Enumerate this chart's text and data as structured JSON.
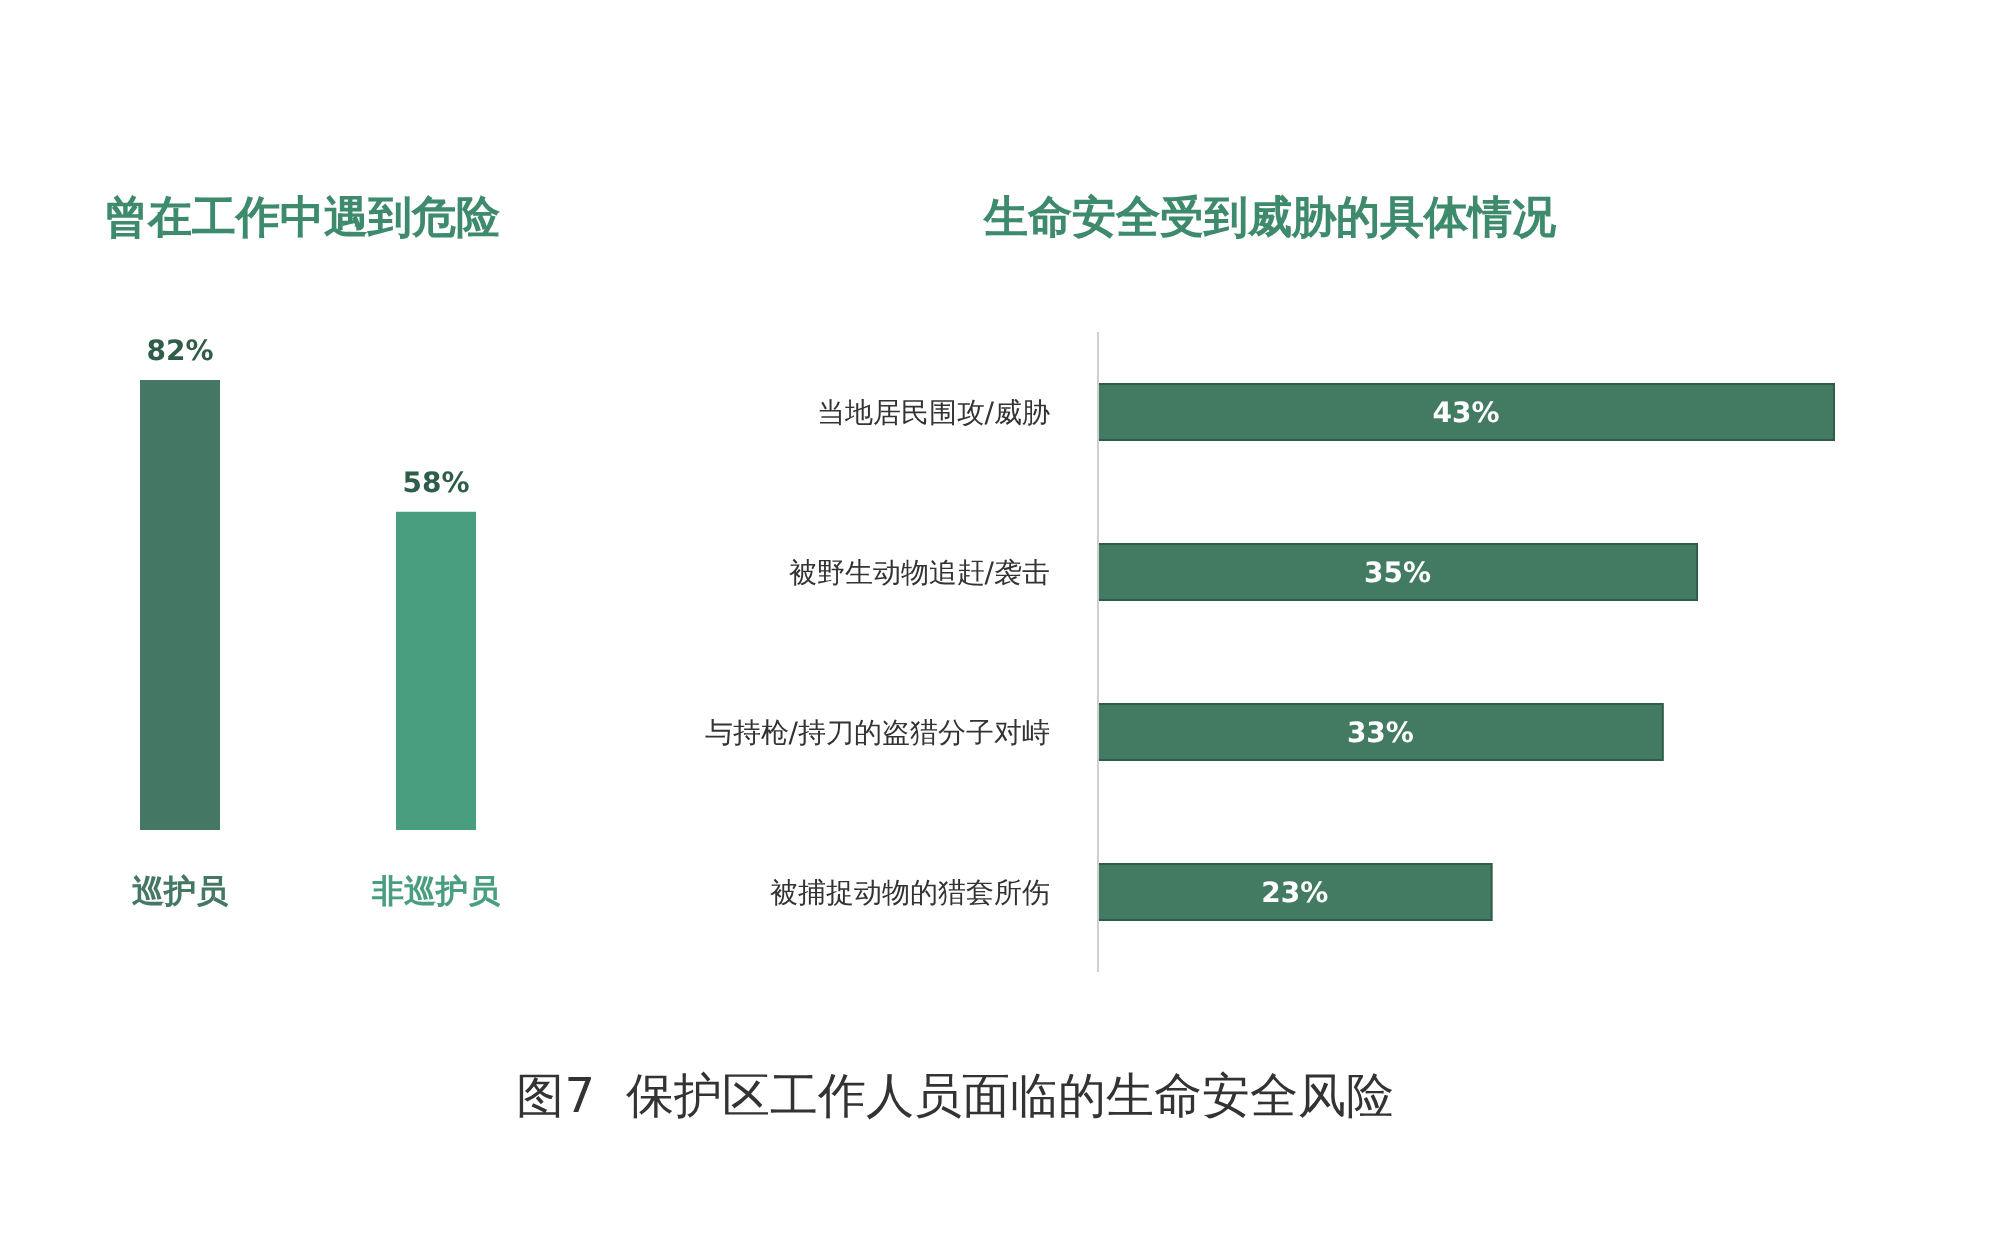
{
  "chart_data": [
    {
      "type": "bar",
      "title": "曾在工作中遇到危险",
      "categories": [
        "巡护员",
        "非巡护员"
      ],
      "values": [
        82,
        58
      ],
      "colors": [
        "#457864",
        "#4a9e80"
      ],
      "value_labels": [
        "82%",
        "58%"
      ]
    },
    {
      "type": "bar",
      "orientation": "horizontal",
      "title": "生命安全受到威胁的具体情况",
      "categories": [
        "当地居民围攻/威胁",
        "被野生动物追赶/袭击",
        "与持枪/持刀的盗猎分子对峙",
        "被捕捉动物的猎套所伤"
      ],
      "values": [
        43,
        35,
        33,
        23
      ],
      "color": "#427a62",
      "value_labels": [
        "43%",
        "35%",
        "33%",
        "23%"
      ],
      "annotations": [
        "图7  保护区工作人员面临的生命安全风险"
      ]
    }
  ]
}
